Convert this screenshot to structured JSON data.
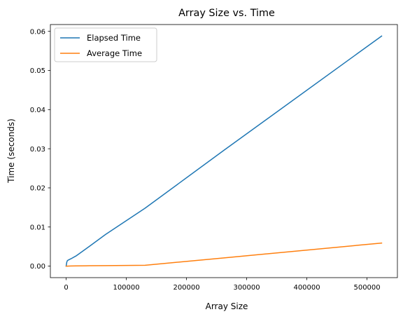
{
  "chart_data": {
    "type": "line",
    "title": "Array Size vs. Time",
    "xlabel": "Array Size",
    "ylabel": "Time (seconds)",
    "xlim": [
      -26214.4,
      550502.4
    ],
    "ylim": [
      -0.00294,
      0.06174
    ],
    "xticks": [
      0,
      100000,
      200000,
      300000,
      400000,
      500000
    ],
    "xtick_labels": [
      "0",
      "100000",
      "200000",
      "300000",
      "400000",
      "500000"
    ],
    "yticks": [
      0.0,
      0.01,
      0.02,
      0.03,
      0.04,
      0.05,
      0.06
    ],
    "ytick_labels": [
      "0.00",
      "0.01",
      "0.02",
      "0.03",
      "0.04",
      "0.05",
      "0.06"
    ],
    "grid": false,
    "legend_position": "top-left",
    "series": [
      {
        "name": "Elapsed Time",
        "color": "#1f77b4",
        "x": [
          0,
          1024,
          2048,
          4096,
          8192,
          16384,
          32768,
          65536,
          131072,
          262144,
          524288
        ],
        "y": [
          0.0,
          0.001,
          0.0014,
          0.0016,
          0.0019,
          0.0026,
          0.0044,
          0.0081,
          0.0148,
          0.0296,
          0.0588
        ]
      },
      {
        "name": "Average Time",
        "color": "#ff7f0e",
        "x": [
          0,
          1024,
          2048,
          4096,
          8192,
          16384,
          32768,
          65536,
          131072,
          262144,
          524288
        ],
        "y": [
          0.0,
          0.0,
          0.0,
          2e-05,
          4e-05,
          6e-05,
          9e-05,
          0.00013,
          0.00022,
          0.0021,
          0.0059
        ]
      }
    ]
  }
}
